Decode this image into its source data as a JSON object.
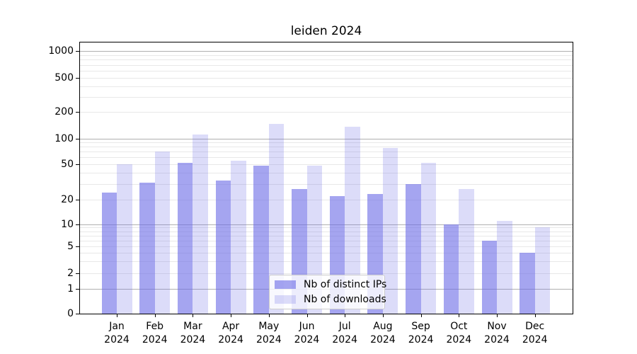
{
  "chart_data": {
    "type": "bar",
    "title": "leiden 2024",
    "categories": [
      "Jan 2024",
      "Feb 2024",
      "Mar 2024",
      "Apr 2024",
      "May 2024",
      "Jun 2024",
      "Jul 2024",
      "Aug 2024",
      "Sep 2024",
      "Oct 2024",
      "Nov 2024",
      "Dec 2024"
    ],
    "month_labels": [
      "Jan",
      "Feb",
      "Mar",
      "Apr",
      "May",
      "Jun",
      "Jul",
      "Aug",
      "Sep",
      "Oct",
      "Nov",
      "Dec"
    ],
    "year_label": "2024",
    "series": [
      {
        "name": "Nb of distinct IPs",
        "color": "rgba(110,110,230,0.62)",
        "values": [
          24,
          31,
          52,
          33,
          48,
          26,
          22,
          23,
          30,
          10,
          6,
          4
        ]
      },
      {
        "name": "Nb of downloads",
        "color": "rgba(110,110,230,0.24)",
        "values": [
          50,
          70,
          112,
          55,
          145,
          48,
          136,
          78,
          52,
          26,
          11,
          9
        ]
      }
    ],
    "yscale": "symlog",
    "y_ticks": [
      0,
      1,
      2,
      5,
      10,
      20,
      50,
      100,
      200,
      500,
      1000
    ],
    "ylim": [
      0,
      1280
    ],
    "grid": true,
    "legend_position": "lower center",
    "axis_color": "#000000",
    "major_grid_color": "#b0b0b0",
    "minor_grid_color": "#e8e8e8",
    "background_color": "#ffffff"
  }
}
